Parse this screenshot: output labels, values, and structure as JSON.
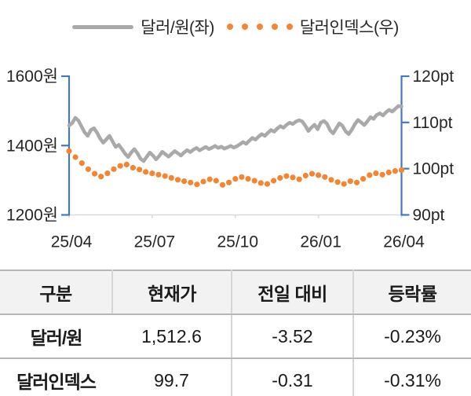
{
  "legend": {
    "series1": "달러/원(좌)",
    "series2": "달러인덱스(우)"
  },
  "colors": {
    "usdkrw_line": "#A9A9A9",
    "dxy_dots": "#EF8638",
    "value_axis": "#4878B6",
    "x_axis_line": "#D9D9D9",
    "axis_text": "#262626"
  },
  "chart_data": {
    "type": "line",
    "legend_position": "top",
    "grid": false,
    "left_axis": {
      "title": "달러/원",
      "min": 1200,
      "max": 1600,
      "ticks": [
        1200,
        1400,
        1600
      ],
      "tick_labels": [
        "1200원",
        "1400원",
        "1600원"
      ]
    },
    "right_axis": {
      "title": "달러인덱스",
      "min": 90,
      "max": 120,
      "ticks": [
        90,
        100,
        110,
        120
      ],
      "tick_labels": [
        "90pt",
        "100pt",
        "110pt",
        "120pt"
      ]
    },
    "x_axis": {
      "tick_labels": [
        "25/04",
        "25/07",
        "25/10",
        "26/01",
        "26/04"
      ]
    },
    "series": [
      {
        "name": "달러/원(좌)",
        "axis": "left",
        "style": "line",
        "color": "#A9A9A9",
        "values": [
          1458,
          1465,
          1480,
          1472,
          1455,
          1438,
          1428,
          1445,
          1450,
          1437,
          1420,
          1408,
          1418,
          1428,
          1412,
          1396,
          1402,
          1390,
          1377,
          1367,
          1380,
          1390,
          1378,
          1362,
          1355,
          1368,
          1380,
          1371,
          1360,
          1370,
          1382,
          1375,
          1368,
          1376,
          1384,
          1378,
          1371,
          1380,
          1387,
          1381,
          1388,
          1393,
          1386,
          1391,
          1396,
          1390,
          1394,
          1399,
          1393,
          1397,
          1391,
          1395,
          1399,
          1394,
          1398,
          1404,
          1410,
          1405,
          1414,
          1422,
          1417,
          1426,
          1433,
          1428,
          1437,
          1445,
          1440,
          1449,
          1456,
          1451,
          1460,
          1466,
          1462,
          1469,
          1473,
          1470,
          1458,
          1442,
          1452,
          1460,
          1447,
          1466,
          1471,
          1463,
          1444,
          1435,
          1450,
          1464,
          1457,
          1441,
          1433,
          1446,
          1462,
          1474,
          1467,
          1459,
          1470,
          1482,
          1477,
          1488,
          1493,
          1487,
          1496,
          1503,
          1498,
          1506,
          1514,
          1512.6
        ]
      },
      {
        "name": "달러인덱스(우)",
        "axis": "right",
        "style": "dots",
        "color": "#EF8638",
        "values": [
          103.8,
          102.5,
          101.2,
          99.9,
          98.9,
          98.3,
          99.0,
          99.9,
          100.6,
          100.9,
          100.2,
          99.8,
          99.3,
          99.0,
          98.7,
          98.4,
          98.0,
          97.6,
          97.3,
          97.0,
          96.6,
          97.2,
          97.7,
          97.4,
          96.5,
          97.0,
          97.8,
          98.2,
          97.8,
          97.4,
          96.9,
          96.7,
          97.4,
          98.0,
          98.4,
          98.1,
          97.7,
          98.5,
          98.9,
          98.6,
          98.2,
          97.6,
          97.1,
          96.7,
          97.3,
          97.0,
          97.8,
          98.6,
          99.0,
          98.7,
          99.2,
          99.5,
          99.7
        ]
      }
    ]
  },
  "table": {
    "headers": [
      "구분",
      "현재가",
      "전일 대비",
      "등락률"
    ],
    "rows": [
      {
        "label": "달러/원",
        "cells": [
          "1,512.6",
          "-3.52",
          "-0.23%"
        ]
      },
      {
        "label": "달러인덱스",
        "cells": [
          "99.7",
          "-0.31",
          "-0.31%"
        ]
      }
    ]
  }
}
